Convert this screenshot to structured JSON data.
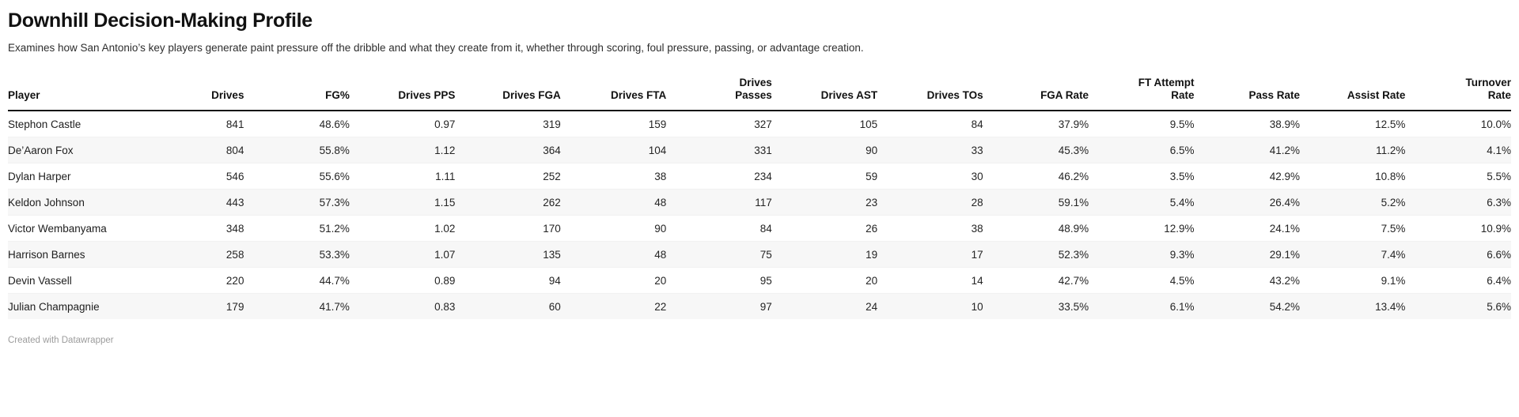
{
  "footer": {
    "credit": "Created with Datawrapper"
  },
  "colors": {
    "row_alt_background": "#f7f7f7",
    "header_rule": "#141414",
    "body_text": "#242424",
    "credit_text": "#9c9c9c",
    "page_background": "#ffffff"
  },
  "chart_data": {
    "type": "table",
    "title": "Downhill Decision-Making Profile",
    "subtitle": "Examines how San Antonio’s key players generate paint pressure off the dribble and what they create from it, whether through scoring, foul pressure, passing, or advantage creation.",
    "striped_rows": true,
    "first_column_align": "left",
    "numeric_columns_align": "right",
    "columns": [
      "Player",
      "Drives",
      "FG%",
      "Drives PPS",
      "Drives FGA",
      "Drives FTA",
      "Drives\nPasses",
      "Drives AST",
      "Drives TOs",
      "FGA Rate",
      "FT Attempt\nRate",
      "Pass Rate",
      "Assist Rate",
      "Turnover\nRate"
    ],
    "rows": [
      [
        "Stephon Castle",
        "841",
        "48.6%",
        "0.97",
        "319",
        "159",
        "327",
        "105",
        "84",
        "37.9%",
        "9.5%",
        "38.9%",
        "12.5%",
        "10.0%"
      ],
      [
        "De’Aaron Fox",
        "804",
        "55.8%",
        "1.12",
        "364",
        "104",
        "331",
        "90",
        "33",
        "45.3%",
        "6.5%",
        "41.2%",
        "11.2%",
        "4.1%"
      ],
      [
        "Dylan Harper",
        "546",
        "55.6%",
        "1.11",
        "252",
        "38",
        "234",
        "59",
        "30",
        "46.2%",
        "3.5%",
        "42.9%",
        "10.8%",
        "5.5%"
      ],
      [
        "Keldon Johnson",
        "443",
        "57.3%",
        "1.15",
        "262",
        "48",
        "117",
        "23",
        "28",
        "59.1%",
        "5.4%",
        "26.4%",
        "5.2%",
        "6.3%"
      ],
      [
        "Victor Wembanyama",
        "348",
        "51.2%",
        "1.02",
        "170",
        "90",
        "84",
        "26",
        "38",
        "48.9%",
        "12.9%",
        "24.1%",
        "7.5%",
        "10.9%"
      ],
      [
        "Harrison Barnes",
        "258",
        "53.3%",
        "1.07",
        "135",
        "48",
        "75",
        "19",
        "17",
        "52.3%",
        "9.3%",
        "29.1%",
        "7.4%",
        "6.6%"
      ],
      [
        "Devin Vassell",
        "220",
        "44.7%",
        "0.89",
        "94",
        "20",
        "95",
        "20",
        "14",
        "42.7%",
        "4.5%",
        "43.2%",
        "9.1%",
        "6.4%"
      ],
      [
        "Julian Champagnie",
        "179",
        "41.7%",
        "0.83",
        "60",
        "22",
        "97",
        "24",
        "10",
        "33.5%",
        "6.1%",
        "54.2%",
        "13.4%",
        "5.6%"
      ]
    ]
  }
}
